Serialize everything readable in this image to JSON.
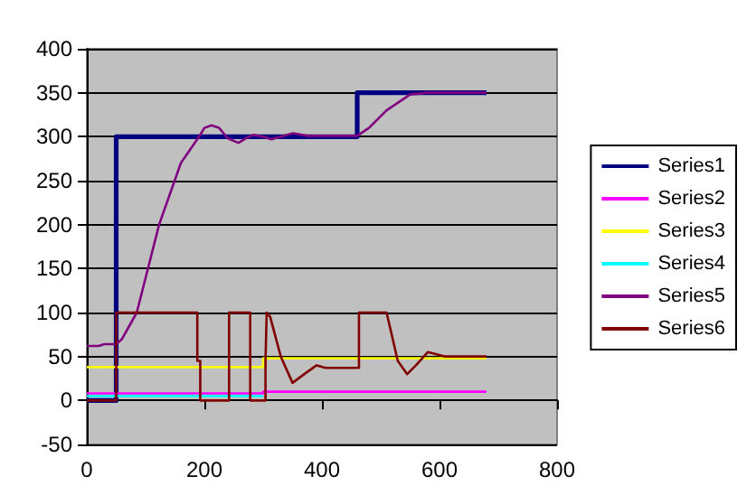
{
  "chart_data": {
    "type": "line",
    "xlim": [
      0,
      800
    ],
    "xticks": [
      0,
      200,
      400,
      600,
      800
    ],
    "ylim": [
      -50,
      400
    ],
    "yticks": [
      -50,
      0,
      50,
      100,
      150,
      200,
      250,
      300,
      350,
      400
    ],
    "grid": "y",
    "legend": "right",
    "marker": "none",
    "line_style": "solid",
    "series": [
      {
        "name": "Series1",
        "color": "#000080",
        "x": [
          0,
          50,
          50,
          460,
          460,
          680
        ],
        "values": [
          0,
          0,
          300,
          300,
          350,
          350
        ]
      },
      {
        "name": "Series2",
        "color": "#ff00ff",
        "x": [
          0,
          300,
          300,
          680
        ],
        "values": [
          8,
          8,
          10,
          10
        ]
      },
      {
        "name": "Series3",
        "color": "#ffff00",
        "x": [
          0,
          300,
          300,
          680
        ],
        "values": [
          38,
          38,
          48,
          48
        ]
      },
      {
        "name": "Series4",
        "color": "#00ffff",
        "x": [
          0,
          300
        ],
        "values": [
          5,
          5
        ]
      },
      {
        "name": "Series5",
        "color": "#800080",
        "x": [
          0,
          20,
          30,
          50,
          60,
          85,
          123,
          160,
          191,
          200,
          212,
          225,
          240,
          258,
          270,
          283,
          300,
          314,
          330,
          351,
          375,
          460,
          480,
          510,
          550,
          580,
          680
        ],
        "values": [
          62,
          62,
          64,
          64,
          70,
          100,
          200,
          270,
          300,
          310,
          313,
          310,
          298,
          293,
          298,
          302,
          300,
          297,
          300,
          304,
          301,
          301,
          310,
          330,
          348,
          350,
          350
        ]
      },
      {
        "name": "Series6",
        "color": "#800000",
        "x": [
          0,
          50,
          50,
          188,
          188,
          193,
          193,
          242,
          242,
          278,
          278,
          304,
          304,
          306,
          312,
          330,
          350,
          370,
          391,
          406,
          463,
          463,
          510,
          529,
          545,
          560,
          580,
          610,
          680
        ],
        "values": [
          0,
          0,
          100,
          100,
          45,
          45,
          0,
          0,
          100,
          100,
          0,
          0,
          45,
          100,
          95,
          50,
          20,
          30,
          40,
          37,
          37,
          100,
          100,
          45,
          30,
          40,
          55,
          50,
          50
        ]
      }
    ]
  }
}
